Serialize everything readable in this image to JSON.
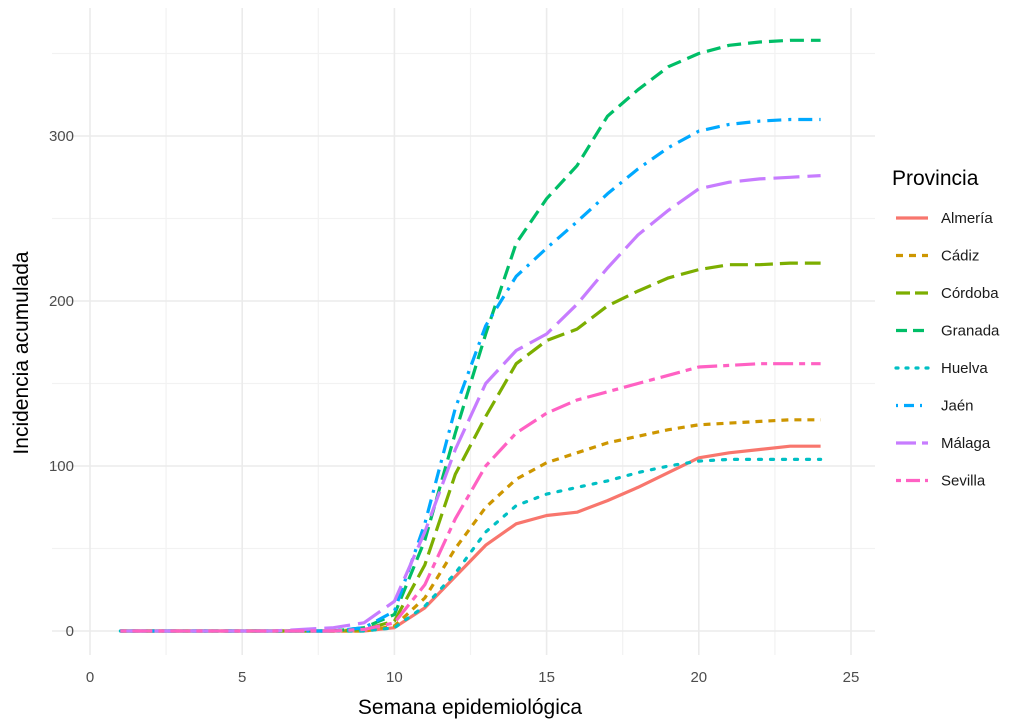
{
  "chart_data": {
    "type": "line",
    "xlabel": "Semana epidemiológica",
    "ylabel": "Incidencia acumulada",
    "xlim": [
      0,
      25
    ],
    "ylim": [
      -20,
      365
    ],
    "x_ticks": [
      0,
      5,
      10,
      15,
      20,
      25
    ],
    "y_ticks": [
      0,
      100,
      200,
      300
    ],
    "grid": true,
    "legend": {
      "title": "Provincia",
      "placement": "right"
    },
    "series": [
      {
        "name": "Almería",
        "color": "#F8766D",
        "dash": "solid",
        "x": [
          1,
          2,
          3,
          4,
          5,
          6,
          7,
          8,
          9,
          10,
          11,
          12,
          13,
          14,
          15,
          16,
          17,
          18,
          19,
          20,
          21,
          22,
          23,
          24
        ],
        "y": [
          0,
          0,
          0,
          0,
          0,
          0,
          0,
          0,
          0,
          2,
          14,
          33,
          52,
          65,
          70,
          72,
          79,
          87,
          96,
          105,
          108,
          110,
          112,
          112
        ]
      },
      {
        "name": "Cádiz",
        "color": "#CD9600",
        "dash": "short",
        "x": [
          1,
          2,
          3,
          4,
          5,
          6,
          7,
          8,
          9,
          10,
          11,
          12,
          13,
          14,
          15,
          16,
          17,
          18,
          19,
          20,
          21,
          22,
          23,
          24
        ],
        "y": [
          0,
          0,
          0,
          0,
          0,
          0,
          0,
          0,
          0,
          3,
          20,
          50,
          75,
          92,
          102,
          108,
          114,
          118,
          122,
          125,
          126,
          127,
          128,
          128
        ]
      },
      {
        "name": "Córdoba",
        "color": "#7CAE00",
        "dash": "longdash",
        "x": [
          1,
          2,
          3,
          4,
          5,
          6,
          7,
          8,
          9,
          10,
          11,
          12,
          13,
          14,
          15,
          16,
          17,
          18,
          19,
          20,
          21,
          22,
          23,
          24
        ],
        "y": [
          0,
          0,
          0,
          0,
          0,
          0,
          0,
          0,
          1,
          6,
          40,
          95,
          130,
          162,
          176,
          183,
          197,
          206,
          214,
          219,
          222,
          222,
          223,
          223
        ]
      },
      {
        "name": "Granada",
        "color": "#00BE67",
        "dash": "dash",
        "x": [
          1,
          2,
          3,
          4,
          5,
          6,
          7,
          8,
          9,
          10,
          11,
          12,
          13,
          14,
          15,
          16,
          17,
          18,
          19,
          20,
          21,
          22,
          23,
          24
        ],
        "y": [
          0,
          0,
          0,
          0,
          0,
          0,
          0,
          0,
          2,
          10,
          55,
          120,
          180,
          235,
          262,
          282,
          312,
          328,
          342,
          350,
          355,
          357,
          358,
          358
        ]
      },
      {
        "name": "Huelva",
        "color": "#00BFC4",
        "dash": "dot",
        "x": [
          1,
          2,
          3,
          4,
          5,
          6,
          7,
          8,
          9,
          10,
          11,
          12,
          13,
          14,
          15,
          16,
          17,
          18,
          19,
          20,
          21,
          22,
          23,
          24
        ],
        "y": [
          0,
          0,
          0,
          0,
          0,
          0,
          0,
          0,
          0,
          2,
          15,
          35,
          60,
          76,
          83,
          87,
          91,
          96,
          100,
          103,
          104,
          104,
          104,
          104
        ]
      },
      {
        "name": "Jaén",
        "color": "#00A9FF",
        "dash": "dotdash",
        "x": [
          1,
          2,
          3,
          4,
          5,
          6,
          7,
          8,
          9,
          10,
          11,
          12,
          13,
          14,
          15,
          16,
          17,
          18,
          19,
          20,
          21,
          22,
          23,
          24
        ],
        "y": [
          0,
          0,
          0,
          0,
          0,
          0,
          0,
          0,
          2,
          12,
          65,
          135,
          185,
          215,
          232,
          248,
          265,
          280,
          293,
          303,
          307,
          309,
          310,
          310
        ]
      },
      {
        "name": "Málaga",
        "color": "#C77CFF",
        "dash": "longlong",
        "x": [
          1,
          2,
          3,
          4,
          5,
          6,
          7,
          8,
          9,
          10,
          11,
          12,
          13,
          14,
          15,
          16,
          17,
          18,
          19,
          20,
          21,
          22,
          23,
          24
        ],
        "y": [
          0,
          0,
          0,
          0,
          0,
          0,
          1,
          2,
          5,
          18,
          60,
          110,
          150,
          170,
          180,
          198,
          220,
          240,
          255,
          268,
          272,
          274,
          275,
          276
        ]
      },
      {
        "name": "Sevilla",
        "color": "#FF61C3",
        "dash": "twodash",
        "x": [
          1,
          2,
          3,
          4,
          5,
          6,
          7,
          8,
          9,
          10,
          11,
          12,
          13,
          14,
          15,
          16,
          17,
          18,
          19,
          20,
          21,
          22,
          23,
          24
        ],
        "y": [
          0,
          0,
          0,
          0,
          0,
          0,
          0,
          0,
          1,
          5,
          28,
          68,
          100,
          120,
          132,
          140,
          145,
          150,
          155,
          160,
          161,
          162,
          162,
          162
        ]
      }
    ]
  }
}
